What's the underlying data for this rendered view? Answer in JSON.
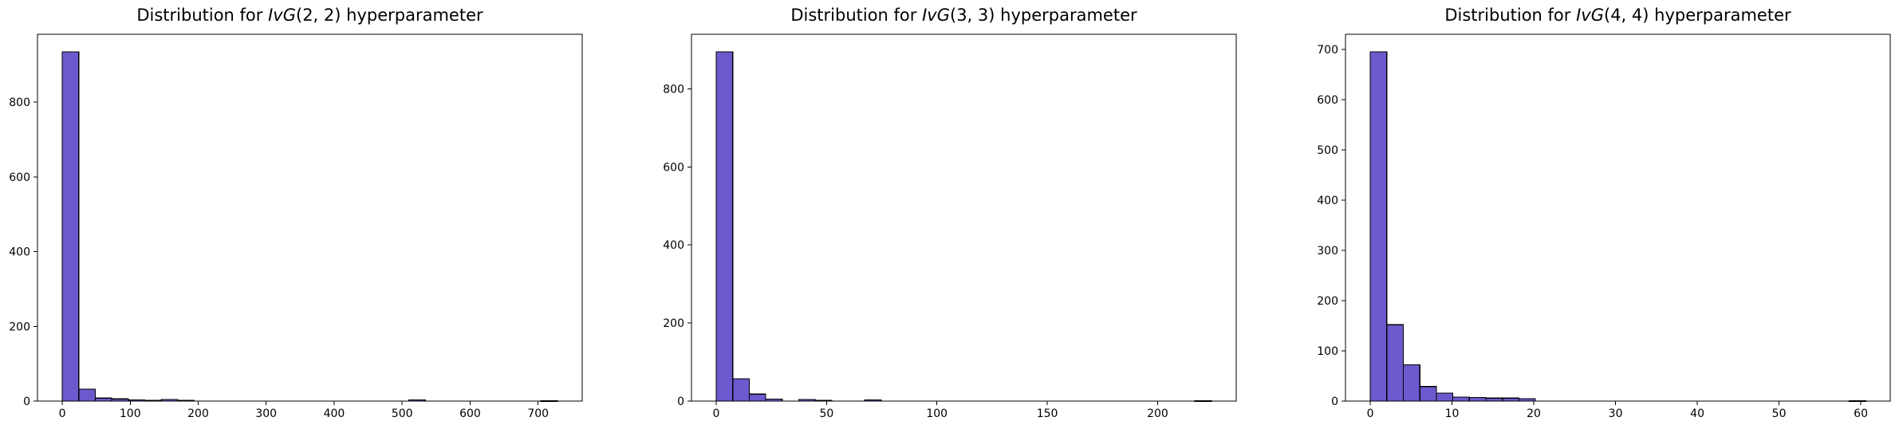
{
  "figure": {
    "background_color": "#ffffff",
    "text_color": "#000000"
  },
  "chart_data": [
    {
      "type": "bar",
      "subtype": "histogram",
      "title": "Distribution for IvG(2, 2) hyperparameter",
      "title_parts": {
        "prefix": "Distribution for ",
        "func_italic": "IvG",
        "args": "(2, 2)",
        "suffix": " hyperparameter"
      },
      "xlabel": "",
      "ylabel": "",
      "grid": false,
      "legend": null,
      "bar_color": "#6A5ACD",
      "bar_edge_color": "#000000",
      "bin_start": 0,
      "bin_width": 24.28,
      "counts": [
        935,
        32,
        8,
        6,
        3,
        2,
        4,
        2,
        0,
        0,
        0,
        0,
        0,
        0,
        0,
        0,
        0,
        0,
        0,
        0,
        0,
        3,
        0,
        0,
        0,
        0,
        0,
        0,
        0,
        1
      ],
      "xticks": [
        0,
        100,
        200,
        300,
        400,
        500,
        600,
        700
      ],
      "yticks": [
        0,
        200,
        400,
        600,
        800
      ],
      "xlim": [
        -36.4,
        764.9
      ],
      "ylim": [
        0,
        981.8
      ]
    },
    {
      "type": "bar",
      "subtype": "histogram",
      "title": "Distribution for IvG(3, 3) hyperparameter",
      "title_parts": {
        "prefix": "Distribution for ",
        "func_italic": "IvG",
        "args": "(3, 3)",
        "suffix": " hyperparameter"
      },
      "xlabel": "",
      "ylabel": "",
      "grid": false,
      "legend": null,
      "bar_color": "#6A5ACD",
      "bar_edge_color": "#000000",
      "bin_start": 0,
      "bin_width": 7.48,
      "counts": [
        895,
        57,
        18,
        5,
        0,
        4,
        2,
        0,
        0,
        3,
        0,
        0,
        0,
        0,
        0,
        0,
        0,
        0,
        0,
        0,
        0,
        0,
        0,
        0,
        0,
        0,
        0,
        0,
        0,
        1
      ],
      "xticks": [
        0,
        50,
        100,
        150,
        200
      ],
      "yticks": [
        0,
        200,
        400,
        600,
        800
      ],
      "xlim": [
        -11.2,
        235.6
      ],
      "ylim": [
        0,
        939.8
      ]
    },
    {
      "type": "bar",
      "subtype": "histogram",
      "title": "Distribution for IvG(4, 4) hyperparameter",
      "title_parts": {
        "prefix": "Distribution for ",
        "func_italic": "IvG",
        "args": "(4, 4)",
        "suffix": " hyperparameter"
      },
      "xlabel": "",
      "ylabel": "",
      "grid": false,
      "legend": null,
      "bar_color": "#6A5ACD",
      "bar_edge_color": "#000000",
      "bin_start": 0,
      "bin_width": 2.02,
      "counts": [
        695,
        152,
        72,
        29,
        16,
        8,
        7,
        6,
        6,
        5,
        0,
        0,
        0,
        0,
        0,
        0,
        0,
        0,
        0,
        0,
        0,
        0,
        0,
        0,
        0,
        0,
        0,
        0,
        0,
        1
      ],
      "xticks": [
        0,
        10,
        20,
        30,
        40,
        50,
        60
      ],
      "yticks": [
        0,
        100,
        200,
        300,
        400,
        500,
        600,
        700
      ],
      "xlim": [
        -3.03,
        63.6
      ],
      "ylim": [
        0,
        729.8
      ]
    }
  ]
}
